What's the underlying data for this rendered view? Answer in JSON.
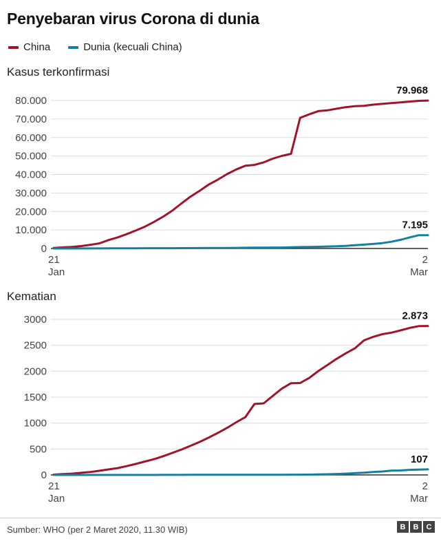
{
  "header": {
    "title": "Penyebaran virus Corona di dunia"
  },
  "legend": [
    {
      "label": "China",
      "color": "#a1132b"
    },
    {
      "label": "Dunia (kecuali China)",
      "color": "#1480a1"
    }
  ],
  "footer": {
    "source": "Sumber: WHO (per 2 Maret 2020, 11.30 WIB)",
    "logo_letters": [
      "B",
      "B",
      "C"
    ]
  },
  "chart_data": [
    {
      "type": "line",
      "title": "Kasus terkonfirmasi",
      "x_dates": [
        "21 Jan",
        "22 Jan",
        "23 Jan",
        "24 Jan",
        "25 Jan",
        "26 Jan",
        "27 Jan",
        "28 Jan",
        "29 Jan",
        "30 Jan",
        "31 Jan",
        "1 Feb",
        "2 Feb",
        "3 Feb",
        "4 Feb",
        "5 Feb",
        "6 Feb",
        "7 Feb",
        "8 Feb",
        "9 Feb",
        "10 Feb",
        "11 Feb",
        "12 Feb",
        "13 Feb",
        "14 Feb",
        "15 Feb",
        "16 Feb",
        "17 Feb",
        "18 Feb",
        "19 Feb",
        "20 Feb",
        "21 Feb",
        "22 Feb",
        "23 Feb",
        "24 Feb",
        "25 Feb",
        "26 Feb",
        "27 Feb",
        "28 Feb",
        "29 Feb",
        "1 Mar",
        "2 Mar"
      ],
      "ylim": [
        0,
        80000
      ],
      "yticks": [
        0,
        10000,
        20000,
        30000,
        40000,
        50000,
        60000,
        70000,
        80000
      ],
      "ytick_labels": [
        "0",
        "10.000",
        "20.000",
        "30.000",
        "40.000",
        "50.000",
        "60.000",
        "70.000",
        "80.000"
      ],
      "xticks": [
        {
          "line1": "21",
          "line2": "Jan"
        },
        {
          "line1": "2",
          "line2": "Mar"
        }
      ],
      "grid": true,
      "legend_position": "top",
      "series": [
        {
          "name": "China",
          "slug": "china",
          "color": "#a1132b",
          "end_label": "79.968",
          "values": [
            314,
            581,
            846,
            1297,
            1985,
            2761,
            4537,
            5997,
            7736,
            9720,
            11821,
            14411,
            17238,
            20471,
            24363,
            28060,
            31211,
            34598,
            37251,
            40235,
            42708,
            44730,
            45171,
            46550,
            48548,
            50054,
            51174,
            70635,
            72528,
            74280,
            74675,
            75569,
            76392,
            76936,
            77150,
            77780,
            78191,
            78630,
            78961,
            79394,
            79824,
            79968
          ]
        },
        {
          "name": "Dunia (kecuali China)",
          "slug": "world",
          "color": "#1480a1",
          "end_label": "7.195",
          "values": [
            6,
            10,
            14,
            25,
            26,
            37,
            56,
            64,
            82,
            98,
            132,
            146,
            153,
            159,
            176,
            191,
            216,
            270,
            288,
            307,
            319,
            395,
            441,
            447,
            505,
            526,
            683,
            794,
            804,
            924,
            1073,
            1200,
            1402,
            1769,
            2069,
            2459,
            2918,
            3664,
            4691,
            6009,
            7169,
            7195
          ]
        }
      ]
    },
    {
      "type": "line",
      "title": "Kematian",
      "x_dates": [
        "21 Jan",
        "22 Jan",
        "23 Jan",
        "24 Jan",
        "25 Jan",
        "26 Jan",
        "27 Jan",
        "28 Jan",
        "29 Jan",
        "30 Jan",
        "31 Jan",
        "1 Feb",
        "2 Feb",
        "3 Feb",
        "4 Feb",
        "5 Feb",
        "6 Feb",
        "7 Feb",
        "8 Feb",
        "9 Feb",
        "10 Feb",
        "11 Feb",
        "12 Feb",
        "13 Feb",
        "14 Feb",
        "15 Feb",
        "16 Feb",
        "17 Feb",
        "18 Feb",
        "19 Feb",
        "20 Feb",
        "21 Feb",
        "22 Feb",
        "23 Feb",
        "24 Feb",
        "25 Feb",
        "26 Feb",
        "27 Feb",
        "28 Feb",
        "29 Feb",
        "1 Mar",
        "2 Mar"
      ],
      "ylim": [
        0,
        3000
      ],
      "yticks": [
        0,
        500,
        1000,
        1500,
        2000,
        2500,
        3000
      ],
      "ytick_labels": [
        "0",
        "500",
        "1000",
        "1500",
        "2000",
        "2500",
        "3000"
      ],
      "xticks": [
        {
          "line1": "21",
          "line2": "Jan"
        },
        {
          "line1": "2",
          "line2": "Mar"
        }
      ],
      "grid": true,
      "legend_position": "top",
      "series": [
        {
          "name": "China",
          "slug": "china",
          "color": "#a1132b",
          "end_label": "2.873",
          "values": [
            6,
            17,
            25,
            41,
            56,
            80,
            106,
            132,
            170,
            213,
            259,
            304,
            361,
            425,
            490,
            563,
            637,
            722,
            811,
            908,
            1016,
            1114,
            1368,
            1380,
            1523,
            1665,
            1770,
            1772,
            1870,
            2004,
            2121,
            2239,
            2345,
            2442,
            2595,
            2663,
            2715,
            2744,
            2788,
            2835,
            2870,
            2873
          ]
        },
        {
          "name": "Dunia (kecuali China)",
          "slug": "world",
          "color": "#1480a1",
          "end_label": "107",
          "values": [
            0,
            0,
            0,
            0,
            0,
            0,
            0,
            0,
            0,
            0,
            0,
            0,
            1,
            1,
            1,
            2,
            2,
            2,
            2,
            2,
            2,
            2,
            3,
            3,
            4,
            4,
            5,
            5,
            7,
            11,
            13,
            18,
            25,
            34,
            43,
            57,
            67,
            82,
            86,
            98,
            104,
            107
          ]
        }
      ]
    }
  ]
}
